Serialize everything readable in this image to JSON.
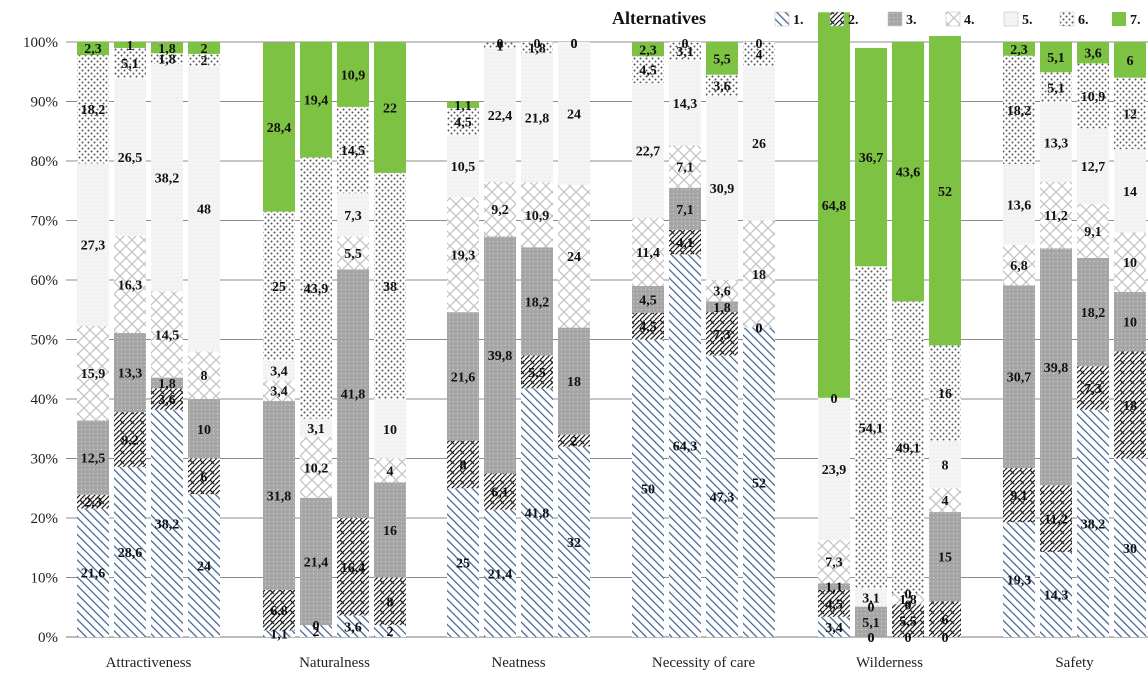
{
  "chart_data": {
    "type": "bar",
    "stacked": true,
    "legend_title": "Alternatives",
    "legend_position": "top-right",
    "yticks": [
      "0%",
      "10%",
      "20%",
      "30%",
      "40%",
      "50%",
      "60%",
      "70%",
      "80%",
      "90%",
      "100%"
    ],
    "ylim": [
      0,
      100
    ],
    "grid": true,
    "series_names": [
      "1.",
      "2.",
      "3.",
      "4.",
      "5.",
      "6.",
      "7."
    ],
    "groups": [
      {
        "name": "Attractiveness",
        "bars": [
          [
            21.6,
            2.3,
            12.5,
            15.9,
            27.3,
            18.2,
            2.3
          ],
          [
            28.6,
            9.2,
            13.3,
            16.3,
            26.5,
            5.1,
            1
          ],
          [
            38.2,
            3.6,
            1.8,
            14.5,
            38.2,
            1.8,
            1.8
          ],
          [
            24,
            6,
            10,
            8,
            48,
            2,
            2
          ]
        ]
      },
      {
        "name": "Naturalness",
        "bars": [
          [
            1.1,
            6.8,
            31.8,
            3.4,
            3.4,
            25,
            28.4
          ],
          [
            2,
            0,
            21.4,
            10.2,
            3.1,
            43.9,
            19.4
          ],
          [
            3.6,
            16.4,
            41.8,
            5.5,
            7.3,
            14.5,
            10.9
          ],
          [
            2,
            8,
            16,
            4,
            10,
            38,
            22
          ]
        ]
      },
      {
        "name": "Neatness",
        "bars": [
          [
            25,
            8,
            21.6,
            19.3,
            10.5,
            4.5,
            1.1
          ],
          [
            21.4,
            6.1,
            39.8,
            9.2,
            22.4,
            1,
            0
          ],
          [
            41.8,
            5.5,
            18.2,
            10.9,
            21.8,
            1.8,
            0
          ],
          [
            32,
            2,
            18,
            24,
            24,
            0,
            0
          ]
        ]
      },
      {
        "name": "Necessity of care",
        "bars": [
          [
            50,
            4.5,
            4.5,
            11.4,
            22.7,
            4.5,
            2.3
          ],
          [
            64.3,
            4.1,
            7.1,
            7.1,
            14.3,
            3.1,
            0
          ],
          [
            47.3,
            7.3,
            1.8,
            3.6,
            30.9,
            3.6,
            5.5
          ],
          [
            52,
            0,
            0,
            18,
            26,
            4,
            0
          ]
        ]
      },
      {
        "name": "Wilderness",
        "bars": [
          [
            3.4,
            4.5,
            1.1,
            7.3,
            23.9,
            0,
            64.8
          ],
          [
            0,
            0,
            5.1,
            0,
            3.1,
            54.1,
            36.7
          ],
          [
            0,
            5.5,
            0,
            1.8,
            0,
            49.1,
            43.6
          ],
          [
            0,
            6,
            15,
            4,
            8,
            16,
            52
          ]
        ]
      },
      {
        "name": "Safety",
        "bars": [
          [
            19.3,
            9.1,
            30.7,
            6.8,
            13.6,
            18.2,
            2.3
          ],
          [
            14.3,
            11.2,
            39.8,
            11.2,
            13.3,
            5.1,
            5.1
          ],
          [
            38.2,
            7.3,
            18.2,
            9.1,
            12.7,
            10.9,
            3.6
          ],
          [
            30,
            18,
            10,
            10,
            14,
            12,
            6
          ]
        ]
      }
    ]
  }
}
